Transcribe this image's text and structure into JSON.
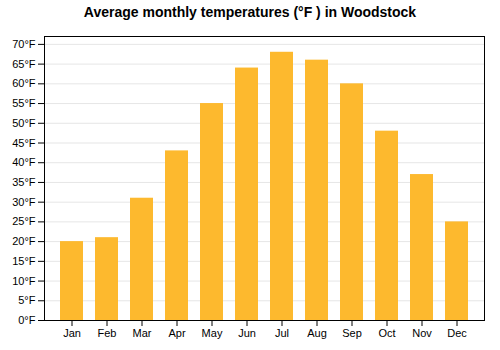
{
  "chart_data": {
    "type": "bar",
    "title": "Average monthly temperatures (°F ) in Woodstock",
    "categories": [
      "Jan",
      "Feb",
      "Mar",
      "Apr",
      "May",
      "Jun",
      "Jul",
      "Aug",
      "Sep",
      "Oct",
      "Nov",
      "Dec"
    ],
    "values": [
      20,
      21,
      31,
      43,
      55,
      64,
      68,
      66,
      60,
      48,
      37,
      25
    ],
    "color": "#FDB92E",
    "ylim": [
      0,
      72
    ],
    "yticks": [
      {
        "value": 0,
        "label": "0°F"
      },
      {
        "value": 5,
        "label": "5°F"
      },
      {
        "value": 10,
        "label": "10°F"
      },
      {
        "value": 15,
        "label": "15°F"
      },
      {
        "value": 20,
        "label": "20°F"
      },
      {
        "value": 25,
        "label": "25°F"
      },
      {
        "value": 30,
        "label": "30°F"
      },
      {
        "value": 35,
        "label": "35°F"
      },
      {
        "value": 40,
        "label": "40°F"
      },
      {
        "value": 45,
        "label": "45°F"
      },
      {
        "value": 50,
        "label": "50°F"
      },
      {
        "value": 55,
        "label": "55°F"
      },
      {
        "value": 60,
        "label": "60°F"
      },
      {
        "value": 65,
        "label": "65°F"
      },
      {
        "value": 70,
        "label": "70°F"
      }
    ],
    "grid": true
  }
}
